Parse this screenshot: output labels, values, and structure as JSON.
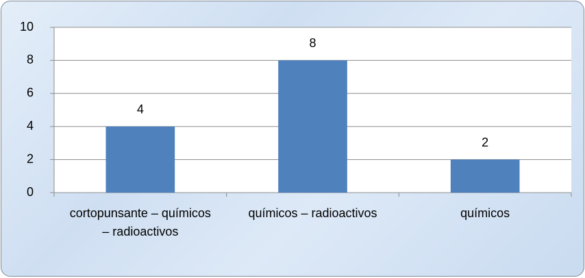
{
  "chart_data": {
    "type": "bar",
    "categories": [
      "cortopunsante – químicos – radioactivos",
      "químicos – radioactivos",
      "químicos"
    ],
    "values": [
      4,
      8,
      2
    ],
    "color": "#4f81bd",
    "ylim": [
      0,
      10
    ],
    "yticks": [
      0,
      2,
      4,
      6,
      8,
      10
    ],
    "grid": true
  }
}
